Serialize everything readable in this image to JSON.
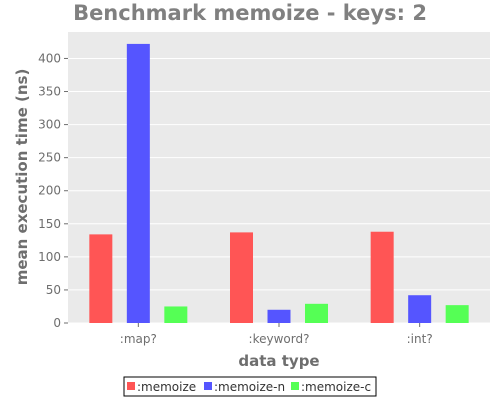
{
  "chart_data": {
    "type": "bar",
    "title": "Benchmark memoize - keys: 2",
    "xlabel": "data type",
    "ylabel": "mean execution time (ns)",
    "categories": [
      ":map?",
      ":keyword?",
      ":int?"
    ],
    "ylim": [
      0,
      440
    ],
    "yticks": [
      0,
      50,
      100,
      150,
      200,
      250,
      300,
      350,
      400
    ],
    "grid": true,
    "legend_position": "bottom",
    "series": [
      {
        "name": ":memoize",
        "color": "#ff5555",
        "values": [
          134,
          137,
          138
        ]
      },
      {
        "name": ":memoize-n",
        "color": "#5555ff",
        "values": [
          422,
          20,
          42
        ]
      },
      {
        "name": ":memoize-c",
        "color": "#55ff55",
        "values": [
          25,
          29,
          27
        ]
      }
    ]
  }
}
